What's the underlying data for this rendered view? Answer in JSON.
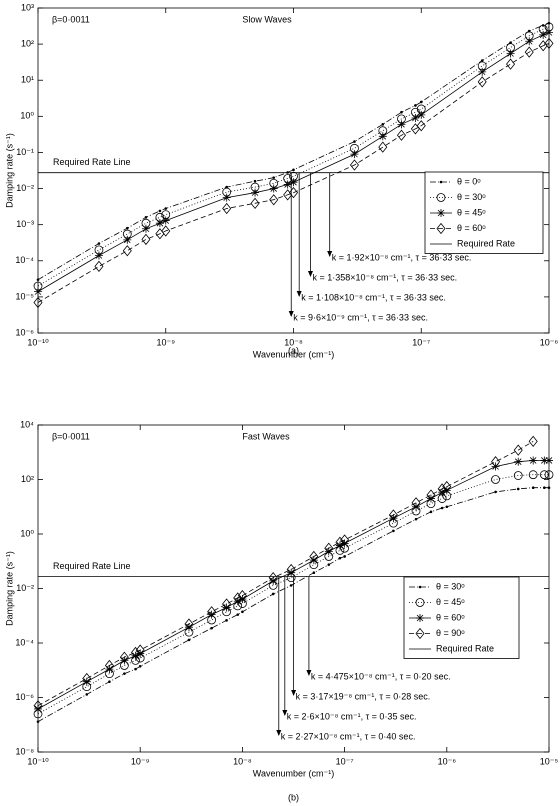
{
  "chart_data": [
    {
      "type": "line",
      "title": "Slow Waves",
      "subtitle": "β=0·0011",
      "caption": "(a)",
      "x_label": "Wavenumber (cm⁻¹)",
      "y_label": "Damping rate (s⁻¹)",
      "log_x": true,
      "log_y": true,
      "grid": false,
      "legend": "right",
      "xlim": [
        1e-10,
        1e-06
      ],
      "xticks": [
        {
          "value": 1e-10,
          "label": "10⁻¹⁰"
        },
        {
          "value": 1e-09,
          "label": "10⁻⁹"
        },
        {
          "value": 1e-08,
          "label": "10⁻⁸"
        },
        {
          "value": 1e-07,
          "label": "10⁻⁷"
        },
        {
          "value": 1e-06,
          "label": "10⁻⁶"
        }
      ],
      "ylim": [
        1e-06,
        1000
      ],
      "yticks": [
        {
          "value": 1e-06,
          "label": "10⁻⁶"
        },
        {
          "value": 1e-05,
          "label": "10⁻⁵"
        },
        {
          "value": 0.0001,
          "label": "10⁻⁴"
        },
        {
          "value": 0.001,
          "label": "10⁻³"
        },
        {
          "value": 0.01,
          "label": "10⁻²"
        },
        {
          "value": 0.1,
          "label": "10⁻¹"
        },
        {
          "value": 1,
          "label": "10⁰"
        },
        {
          "value": 10,
          "label": "10¹"
        },
        {
          "value": 100,
          "label": "10²"
        },
        {
          "value": 1000,
          "label": "10³"
        }
      ],
      "x": [
        1e-10,
        3e-10,
        5e-10,
        7e-10,
        9e-10,
        1e-09,
        3e-09,
        5e-09,
        7e-09,
        9e-09,
        1e-08,
        3e-08,
        5e-08,
        7e-08,
        9e-08,
        1e-07,
        3e-07,
        5e-07,
        7e-07,
        9e-07,
        1e-06
      ],
      "series": [
        {
          "name": "θ = 0ᵒ",
          "color": "#000000",
          "marker": "point",
          "dash": "6,2,1,2",
          "values": [
            3e-05,
            0.0003,
            0.0008,
            0.0016,
            0.0024,
            0.0028,
            0.011,
            0.016,
            0.02,
            0.028,
            0.033,
            0.2,
            0.6,
            1.3,
            2,
            2.5,
            35,
            110,
            230,
            330,
            380
          ]
        },
        {
          "name": "θ = 30ᵒ",
          "color": "#000000",
          "marker": "circle",
          "dash": "1,2",
          "values": [
            2e-05,
            0.0002,
            0.00055,
            0.0011,
            0.0016,
            0.0019,
            0.008,
            0.011,
            0.014,
            0.019,
            0.022,
            0.13,
            0.4,
            0.85,
            1.3,
            1.6,
            25,
            80,
            170,
            260,
            300
          ]
        },
        {
          "name": "θ = 45ᵒ",
          "color": "#000000",
          "marker": "star",
          "dash": "none",
          "values": [
            1.4e-05,
            0.00014,
            0.00038,
            0.00077,
            0.0011,
            0.0013,
            0.0056,
            0.0077,
            0.01,
            0.013,
            0.015,
            0.09,
            0.28,
            0.6,
            0.9,
            1.1,
            17,
            55,
            120,
            180,
            210
          ]
        },
        {
          "name": "θ = 60ᵒ",
          "color": "#000000",
          "marker": "diamond",
          "dash": "5,3",
          "values": [
            7e-06,
            7e-05,
            0.00019,
            0.00039,
            0.00056,
            0.00067,
            0.0028,
            0.0039,
            0.0049,
            0.0067,
            0.0077,
            0.045,
            0.14,
            0.3,
            0.45,
            0.55,
            9,
            28,
            60,
            90,
            105
          ]
        }
      ],
      "reference_line": {
        "name": "Required Rate",
        "label": "Required Rate Line",
        "value": 0.0275
      },
      "annotations": [
        {
          "text": "k = 1·92×10⁻⁸ cm⁻¹, τ = 36·33 sec.",
          "x": 1.92e-08
        },
        {
          "text": "k = 1·358×10⁻⁸ cm⁻¹, τ = 36·33 sec.",
          "x": 1.358e-08
        },
        {
          "text": "k = 1·108×10⁻⁸ cm⁻¹, τ = 36·33 sec.",
          "x": 1.108e-08
        },
        {
          "text": "k = 9·6×10⁻⁹ cm⁻¹, τ = 36·33 sec.",
          "x": 9.6e-09
        }
      ]
    },
    {
      "type": "line",
      "title": "Fast Waves",
      "subtitle": "β=0·0011",
      "caption": "(b)",
      "x_label": "Wavenumber (cm⁻¹)",
      "y_label": "Damping rate (s⁻¹)",
      "log_x": true,
      "log_y": true,
      "grid": false,
      "legend": "right",
      "xlim": [
        1e-10,
        1e-05
      ],
      "xticks": [
        {
          "value": 1e-10,
          "label": "10⁻¹⁰"
        },
        {
          "value": 1e-09,
          "label": "10⁻⁹"
        },
        {
          "value": 1e-08,
          "label": "10⁻⁸"
        },
        {
          "value": 1e-07,
          "label": "10⁻⁷"
        },
        {
          "value": 1e-06,
          "label": "10⁻⁶"
        },
        {
          "value": 1e-05,
          "label": "10⁻⁵"
        }
      ],
      "ylim": [
        1e-08,
        10000
      ],
      "yticks": [
        {
          "value": 1e-08,
          "label": "10⁻⁸"
        },
        {
          "value": 1e-06,
          "label": "10⁻⁶"
        },
        {
          "value": 0.0001,
          "label": "10⁻⁴"
        },
        {
          "value": 0.01,
          "label": "10⁻²"
        },
        {
          "value": 1,
          "label": "10⁰"
        },
        {
          "value": 100,
          "label": "10²"
        },
        {
          "value": 10000,
          "label": "10⁴"
        }
      ],
      "x": [
        1e-10,
        3e-10,
        5e-10,
        7e-10,
        9e-10,
        1e-09,
        3e-09,
        5e-09,
        7e-09,
        9e-09,
        1e-08,
        2e-08,
        3e-08,
        5e-08,
        7e-08,
        9e-08,
        1e-07,
        3e-07,
        5e-07,
        7e-07,
        9e-07,
        1e-06,
        3e-06,
        5e-06,
        7e-06,
        9e-06,
        1e-05
      ],
      "series": [
        {
          "name": "θ = 30ᵒ",
          "color": "#000000",
          "marker": "point",
          "dash": "6,2,1,2",
          "values": [
            1.3e-07,
            1.3e-06,
            3.8e-06,
            7.5e-06,
            1.1e-05,
            1.4e-05,
            0.00013,
            0.00035,
            0.00068,
            0.0011,
            0.0014,
            0.0063,
            0.013,
            0.038,
            0.075,
            0.13,
            0.15,
            1.3,
            3.5,
            6.5,
            9,
            10,
            35,
            45,
            50,
            50,
            50
          ]
        },
        {
          "name": "θ = 45ᵒ",
          "color": "#000000",
          "marker": "circle",
          "dash": "1,2",
          "values": [
            2.5e-07,
            2.5e-06,
            7.5e-06,
            1.5e-05,
            2.3e-05,
            2.8e-05,
            0.00025,
            0.0007,
            0.0014,
            0.0023,
            0.0028,
            0.013,
            0.025,
            0.075,
            0.15,
            0.25,
            0.3,
            2.5,
            7,
            13,
            20,
            25,
            100,
            140,
            150,
            150,
            150
          ]
        },
        {
          "name": "θ = 60ᵒ",
          "color": "#000000",
          "marker": "star",
          "dash": "none",
          "values": [
            3.8e-07,
            3.8e-06,
            1.1e-05,
            2.3e-05,
            3.4e-05,
            4.1e-05,
            0.00038,
            0.0011,
            0.002,
            0.0034,
            0.0041,
            0.019,
            0.038,
            0.11,
            0.23,
            0.38,
            0.45,
            3.8,
            10,
            20,
            34,
            40,
            300,
            450,
            500,
            500,
            500
          ]
        },
        {
          "name": "θ = 90ᵒ",
          "color": "#000000",
          "marker": "diamond",
          "dash": "5,3",
          "values": [
            5e-07,
            5e-06,
            1.5e-05,
            3e-05,
            4.5e-05,
            5.5e-05,
            0.0005,
            0.0014,
            0.0027,
            0.0045,
            0.0055,
            0.025,
            0.05,
            0.15,
            0.3,
            0.5,
            0.6,
            5,
            14,
            27,
            45,
            55,
            450,
            1200,
            2500,
            null,
            null
          ]
        }
      ],
      "reference_line": {
        "name": "Required Rate",
        "label": "Required Rate Line",
        "value": 0.0275
      },
      "annotations": [
        {
          "text": "k = 4·475×10⁻⁸ cm⁻¹, τ = 0·20 sec.",
          "x": 4.475e-08
        },
        {
          "text": "k = 3·17×19⁻⁸ cm⁻¹, τ = 0·28 sec.",
          "x": 3.17e-08
        },
        {
          "text": "k = 2·6×10⁻⁸ cm⁻¹, τ = 0·35 sec.",
          "x": 2.6e-08
        },
        {
          "text": "k = 2·27×10⁻⁸ cm⁻¹, τ = 0·40 sec.",
          "x": 2.27e-08
        }
      ]
    }
  ]
}
